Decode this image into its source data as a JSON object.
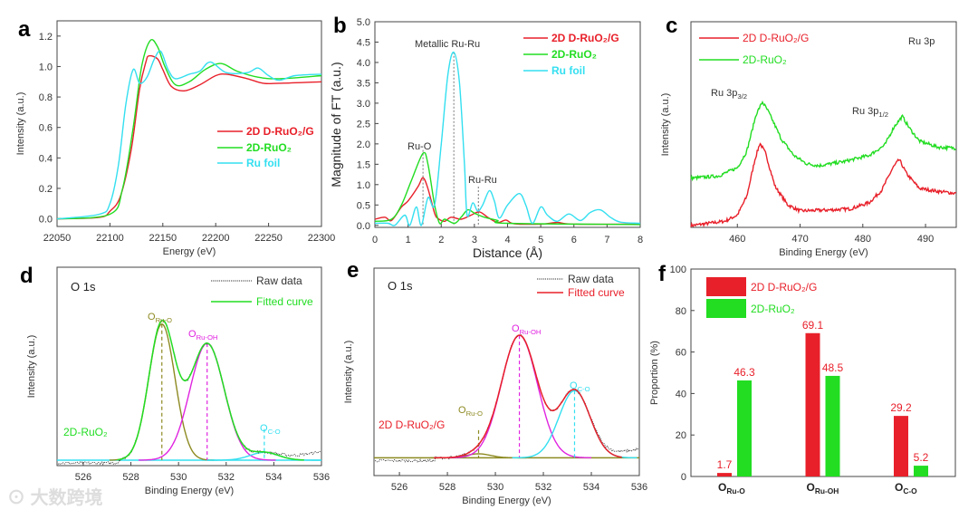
{
  "colors": {
    "red": "#e8202a",
    "green": "#22dd22",
    "cyan": "#33dff0",
    "olive": "#8d8a22",
    "magenta": "#e024e0",
    "axis": "#444444",
    "raw": "#333333"
  },
  "watermark": "大数跨境",
  "chart_data": [
    {
      "id": "a",
      "letter": "a",
      "type": "line",
      "xlabel": "Energy (eV)",
      "ylabel": "Intensity (a.u.)",
      "xlim": [
        22050,
        22300
      ],
      "ylim": [
        -0.05,
        1.3
      ],
      "xticks": [
        "22050",
        "22100",
        "22150",
        "22200",
        "22250",
        "22300"
      ],
      "yticks": [
        "0.0",
        "0.2",
        "0.4",
        "0.6",
        "0.8",
        "1.0",
        "1.2"
      ],
      "legend": {
        "placement": "middle-right",
        "bold": true
      },
      "series": [
        {
          "name": "2D D-RuO₂/G",
          "color": "red",
          "x": [
            22050,
            22090,
            22100,
            22110,
            22120,
            22128,
            22134,
            22137,
            22145,
            22150,
            22158,
            22170,
            22185,
            22200,
            22210,
            22230,
            22245,
            22260,
            22300
          ],
          "y": [
            0,
            0.01,
            0.05,
            0.15,
            0.45,
            0.85,
            1.03,
            1.07,
            1.05,
            0.98,
            0.87,
            0.84,
            0.88,
            0.94,
            0.95,
            0.92,
            0.89,
            0.89,
            0.9
          ]
        },
        {
          "name": "2D-RuO₂",
          "color": "green",
          "x": [
            22050,
            22100,
            22112,
            22122,
            22130,
            22138,
            22145,
            22152,
            22162,
            22175,
            22190,
            22205,
            22220,
            22240,
            22260,
            22300
          ],
          "y": [
            0,
            0.03,
            0.2,
            0.6,
            1.0,
            1.17,
            1.13,
            1.0,
            0.88,
            0.9,
            0.98,
            1.02,
            0.97,
            0.93,
            0.92,
            0.94
          ]
        },
        {
          "name": "Ru foil",
          "color": "cyan",
          "x": [
            22050,
            22090,
            22100,
            22108,
            22115,
            22122,
            22128,
            22135,
            22142,
            22148,
            22155,
            22162,
            22175,
            22185,
            22195,
            22210,
            22230,
            22240,
            22250,
            22260,
            22275,
            22300
          ],
          "y": [
            0,
            0.03,
            0.1,
            0.35,
            0.75,
            0.98,
            0.89,
            0.93,
            1.05,
            1.1,
            0.98,
            0.92,
            0.95,
            0.97,
            1.03,
            0.96,
            0.96,
            0.99,
            0.94,
            0.91,
            0.94,
            0.95
          ]
        }
      ]
    },
    {
      "id": "b",
      "letter": "b",
      "type": "line",
      "xlabel": "Distance (Å)",
      "ylabel": "Magnitude of FT (a.u.)",
      "xlim": [
        0,
        8
      ],
      "ylim": [
        -0.05,
        5.0
      ],
      "xticks": [
        "0",
        "1",
        "2",
        "3",
        "4",
        "5",
        "6",
        "7",
        "8"
      ],
      "yticks": [
        "0.0",
        "0.5",
        "1.0",
        "1.5",
        "2.0",
        "2.5",
        "3.0",
        "3.5",
        "4.0",
        "4.5",
        "5.0"
      ],
      "legend": {
        "placement": "top-right",
        "bold": true
      },
      "series": [
        {
          "name": "2D D-RuO₂/G",
          "color": "red",
          "x": [
            0,
            0.3,
            0.5,
            0.8,
            1.0,
            1.3,
            1.45,
            1.6,
            1.8,
            1.9,
            2.1,
            2.3,
            2.6,
            2.9,
            3.15,
            3.4,
            3.7,
            3.95,
            4.2,
            5,
            5.5,
            6,
            8
          ],
          "y": [
            0.15,
            0.2,
            0.12,
            0.45,
            0.6,
            0.95,
            1.17,
            0.9,
            0.3,
            0.17,
            0.1,
            0.2,
            0.15,
            0.25,
            0.33,
            0.2,
            0.07,
            0.13,
            0.04,
            0.03,
            0.07,
            0.03,
            0.03
          ]
        },
        {
          "name": "2D-RuO₂",
          "color": "green",
          "x": [
            0,
            0.5,
            0.8,
            1.1,
            1.45,
            1.6,
            1.8,
            1.95,
            2.1,
            2.4,
            2.6,
            2.8,
            3.0,
            3.3,
            3.7,
            4,
            8
          ],
          "y": [
            0.1,
            0.15,
            0.5,
            1.1,
            1.77,
            1.5,
            0.5,
            0.05,
            0.15,
            0.05,
            0.2,
            0.38,
            0.3,
            0.2,
            0.12,
            0.05,
            0.02
          ]
        },
        {
          "name": "Ru foil",
          "color": "cyan",
          "x": [
            0,
            0.4,
            0.6,
            0.9,
            1.05,
            1.25,
            1.4,
            1.6,
            1.8,
            2.0,
            2.2,
            2.38,
            2.55,
            2.7,
            2.78,
            2.95,
            3.1,
            3.25,
            3.45,
            3.6,
            3.75,
            4,
            4.35,
            4.55,
            4.75,
            5.0,
            5.2,
            5.5,
            5.85,
            6.2,
            6.5,
            6.8,
            7.1,
            7.4,
            8
          ],
          "y": [
            0.05,
            0.05,
            0,
            0.25,
            0,
            0.45,
            0,
            0.68,
            0.5,
            2.0,
            3.7,
            4.25,
            3.5,
            1.5,
            0.25,
            0.55,
            0.35,
            0.5,
            0.85,
            0.6,
            0.18,
            0.5,
            0.78,
            0.5,
            0.05,
            0.45,
            0.25,
            0.1,
            0.28,
            0.12,
            0.32,
            0.38,
            0.2,
            0.08,
            0.05
          ]
        }
      ],
      "markers": [
        {
          "x": 1.45,
          "top": 1.85,
          "label": "Ru-O"
        },
        {
          "x": 2.38,
          "top": 4.25,
          "label": "Metallic Ru-Ru"
        },
        {
          "x": 3.12,
          "top": 0.95,
          "label": "Ru-Ru"
        }
      ]
    },
    {
      "id": "c",
      "letter": "c",
      "type": "line",
      "xlabel": "Binding Energy (eV)",
      "ylabel": "Intensity (a.u.)",
      "xlim": [
        452.6,
        494.9
      ],
      "ylim": [
        0,
        1
      ],
      "xticks": [
        "460",
        "470",
        "480",
        "490"
      ],
      "yticks": [],
      "legend": {
        "placement": "top-left",
        "bold": false
      },
      "title": "Ru 3p",
      "annotations": [
        {
          "main": "Ru 3p",
          "sub": "3/2"
        },
        {
          "main": "Ru 3p",
          "sub": "1/2"
        }
      ],
      "series": [
        {
          "name": "2D D-RuO₂/G",
          "color": "red",
          "noisy": true,
          "x": [
            453,
            458,
            460,
            461.5,
            462.8,
            463.6,
            464.5,
            466,
            468,
            470,
            475,
            478,
            481,
            483,
            484.8,
            485.8,
            487,
            489,
            492,
            495
          ],
          "y": [
            0.01,
            0.03,
            0.06,
            0.15,
            0.33,
            0.41,
            0.36,
            0.2,
            0.11,
            0.08,
            0.085,
            0.09,
            0.12,
            0.18,
            0.29,
            0.33,
            0.26,
            0.19,
            0.175,
            0.165
          ]
        },
        {
          "name": "2D-RuO₂",
          "color": "green",
          "noisy": true,
          "x": [
            453,
            457,
            460,
            461.5,
            463,
            464,
            465,
            467,
            469,
            471,
            473,
            477,
            481,
            483.5,
            485,
            486.3,
            487.5,
            489,
            492,
            495
          ],
          "y": [
            0.24,
            0.25,
            0.29,
            0.37,
            0.55,
            0.61,
            0.56,
            0.43,
            0.35,
            0.31,
            0.3,
            0.32,
            0.35,
            0.4,
            0.49,
            0.54,
            0.48,
            0.42,
            0.39,
            0.385
          ]
        }
      ]
    },
    {
      "id": "d",
      "letter": "d",
      "type": "line",
      "xlabel": "Binding Energy (eV)",
      "ylabel": "Intensity (a.u.)",
      "xlim": [
        524.9,
        536
      ],
      "ylim": [
        -0.02,
        1
      ],
      "xticks": [
        "526",
        "528",
        "530",
        "532",
        "534",
        "536"
      ],
      "yticks": [],
      "title": "O 1s",
      "sample": "2D-RuO₂",
      "sample_color": "green",
      "legend": {
        "raw": "Raw data",
        "fitted": "Fitted curve",
        "fitted_color": "green"
      },
      "baseline": 0.008,
      "baseline_color": "cyan",
      "components": [
        {
          "main": "O",
          "sub": "Ru-O",
          "color": "olive",
          "center": 529.3,
          "height": 0.7,
          "sigma": 0.55
        },
        {
          "main": "O",
          "sub": "Ru-OH",
          "color": "magenta",
          "center": 531.2,
          "height": 0.6,
          "sigma": 0.72
        },
        {
          "main": "O",
          "sub": "C-O",
          "color": "cyan",
          "center": 533.6,
          "height": 0.04,
          "sigma": 0.6
        }
      ]
    },
    {
      "id": "e",
      "letter": "e",
      "type": "line",
      "xlabel": "Binding Energy (eV)",
      "ylabel": "Intensity (a.u.)",
      "xlim": [
        524.94,
        536
      ],
      "ylim": [
        -0.05,
        1
      ],
      "xticks": [
        "526",
        "528",
        "530",
        "532",
        "534",
        "536"
      ],
      "yticks": [],
      "title": "O 1s",
      "sample": "2D D-RuO₂/G",
      "sample_color": "red",
      "legend": {
        "raw": "Raw data",
        "fitted": "Fitted curve",
        "fitted_color": "red"
      },
      "baseline": 0.04,
      "baseline_color": "olive",
      "components": [
        {
          "main": "O",
          "sub": "Ru-O",
          "color": "olive",
          "center": 529.3,
          "height": 0.02,
          "sigma": 0.5
        },
        {
          "main": "O",
          "sub": "Ru-OH",
          "color": "magenta",
          "center": 531.0,
          "height": 0.62,
          "sigma": 0.75
        },
        {
          "main": "O",
          "sub": "C-O",
          "color": "cyan",
          "center": 533.3,
          "height": 0.34,
          "sigma": 0.65
        }
      ]
    },
    {
      "id": "f",
      "letter": "f",
      "type": "bar",
      "ylabel": "Proportion (%)",
      "ylim": [
        0,
        100
      ],
      "yticks": [
        "0",
        "20",
        "40",
        "60",
        "80",
        "100"
      ],
      "categories": [
        {
          "main": "O",
          "sub": "Ru-O"
        },
        {
          "main": "O",
          "sub": "Ru-OH"
        },
        {
          "main": "O",
          "sub": "C-O"
        }
      ],
      "legend": {
        "placement": "top-left"
      },
      "series": [
        {
          "name": "2D D-RuO₂/G",
          "color": "red",
          "values": [
            1.7,
            69.1,
            29.2
          ],
          "labels": [
            "1.7",
            "69.1",
            "29.2"
          ]
        },
        {
          "name": "2D-RuO₂",
          "color": "green",
          "values": [
            46.3,
            48.5,
            5.2
          ],
          "labels": [
            "46.3",
            "48.5",
            "5.2"
          ]
        }
      ]
    }
  ]
}
